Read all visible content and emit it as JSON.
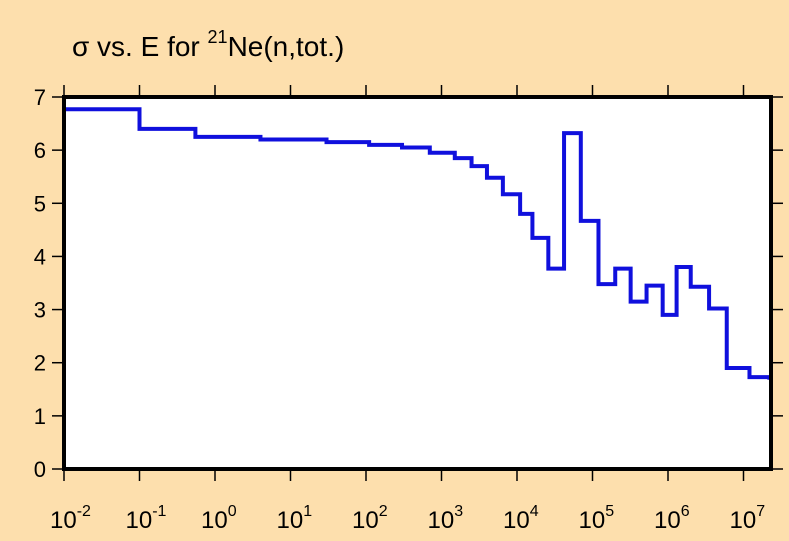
{
  "chart_data": {
    "type": "line",
    "step": true,
    "title": {
      "prefix": "σ vs. E for ",
      "superscript": "21",
      "suffix": "Ne(n,tot.)"
    },
    "xlabel": "",
    "ylabel": "",
    "xscale": "log",
    "xlim": [
      0.01,
      22000000
    ],
    "ylim": [
      0,
      7
    ],
    "yticks": [
      0,
      1,
      2,
      3,
      4,
      5,
      6,
      7
    ],
    "xtick_labels": [
      {
        "base": "10",
        "exp": "-2"
      },
      {
        "base": "10",
        "exp": "-1"
      },
      {
        "base": "10",
        "exp": "0"
      },
      {
        "base": "10",
        "exp": "1"
      },
      {
        "base": "10",
        "exp": "2"
      },
      {
        "base": "10",
        "exp": "3"
      },
      {
        "base": "10",
        "exp": "4"
      },
      {
        "base": "10",
        "exp": "5"
      },
      {
        "base": "10",
        "exp": "6"
      },
      {
        "base": "10",
        "exp": "7"
      }
    ],
    "grid": false,
    "line_color": "#1010dd",
    "background_color": "#fddfad",
    "series": [
      {
        "edges": [
          0.01,
          0.1,
          0.55,
          4,
          30,
          110,
          300,
          700,
          1500,
          2500,
          4000,
          6500,
          11000,
          16000,
          26000,
          42000,
          70000,
          120000,
          200000,
          320000,
          520000,
          850000,
          1300000,
          2000000,
          3500000,
          6000000,
          12000000,
          22000000
        ],
        "values": [
          6.77,
          6.4,
          6.25,
          6.2,
          6.15,
          6.1,
          6.05,
          5.95,
          5.85,
          5.7,
          5.48,
          5.17,
          4.8,
          4.35,
          3.77,
          6.32,
          4.67,
          3.48,
          3.77,
          3.15,
          3.45,
          2.9,
          3.8,
          3.43,
          3.02,
          1.9,
          1.73,
          1.68
        ]
      }
    ]
  }
}
